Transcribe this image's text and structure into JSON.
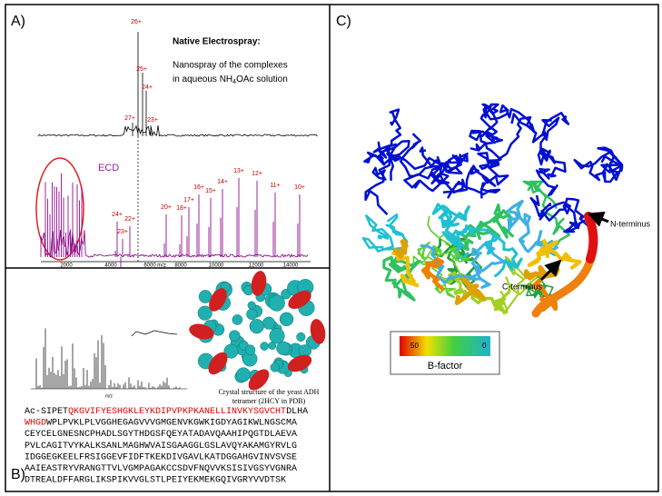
{
  "panel_a": {
    "label": "A)",
    "title": "Native Electrospray:",
    "description_line1": "Nanospray of the complexes",
    "description_line2": [
      "in aqueous NH",
      "4",
      "OAc solution"
    ],
    "native_charges": [
      "26+",
      "25+",
      "24+",
      "27+",
      "23+"
    ],
    "ecd_label": "ECD",
    "ecd_charges": [
      "24+",
      "23+",
      "22+",
      "20+",
      "18+",
      "17+",
      "16+",
      "15+",
      "14+",
      "13+",
      "12+",
      "11+",
      "10+"
    ],
    "axis_ticks": [
      "2000",
      "4000",
      "6000",
      "m/z",
      "8000",
      "10000",
      "12000",
      "14000"
    ]
  },
  "panel_b": {
    "label": "B)",
    "axis_label": "m/z",
    "caption": [
      "Crystal structure of the yeast ADH",
      "tetramer (2HCY in PDB)"
    ],
    "sequence": [
      [
        {
          "text": "Ac-SIPET",
          "red": false
        },
        {
          "text": "QKGVIFYESHGKLEYKDIPVPKPKANELLINVKYSGVCHT",
          "red": true
        },
        {
          "text": "DLHA",
          "red": false
        }
      ],
      [
        {
          "text": "WHGD",
          "red": true
        },
        {
          "text": "WPLPVKLPLVGGHEGAGVVVGMGENVKGWKIGDYAGIKWLNGSCMA",
          "red": false
        }
      ],
      [
        {
          "text": "CEYCELGNESNCPHADLSGYTHDGSFQEYATADAVQAAHIPQGTDLAEVA",
          "red": false
        }
      ],
      [
        {
          "text": "PVLCAGITVYKALKSANLMAGHWVAISGAAGGLGSLAVQYAKAMGYRVLG",
          "red": false
        }
      ],
      [
        {
          "text": "IDGGEGKEELFRSIGGEVFIDFTKEKDIVGAVLKATDGGAHGVINVSVSE",
          "red": false
        }
      ],
      [
        {
          "text": "AAIEASTRYVRANGTTVLVGMPAGAKCCSDVFNQVVKSISIVGSYVGNRA",
          "red": false
        }
      ],
      [
        {
          "text": "DTREALDFFARGLIKSPIKVVGLSTLPEIYEKMEKGQIVGRYVVDTSK",
          "red": false
        }
      ]
    ]
  },
  "panel_c": {
    "label": "C)",
    "n_terminus": "N-terminus",
    "c_terminus": "C-terminus",
    "colorbar_max": "50",
    "colorbar_min": "0",
    "colorbar_title": "B-factor"
  }
}
